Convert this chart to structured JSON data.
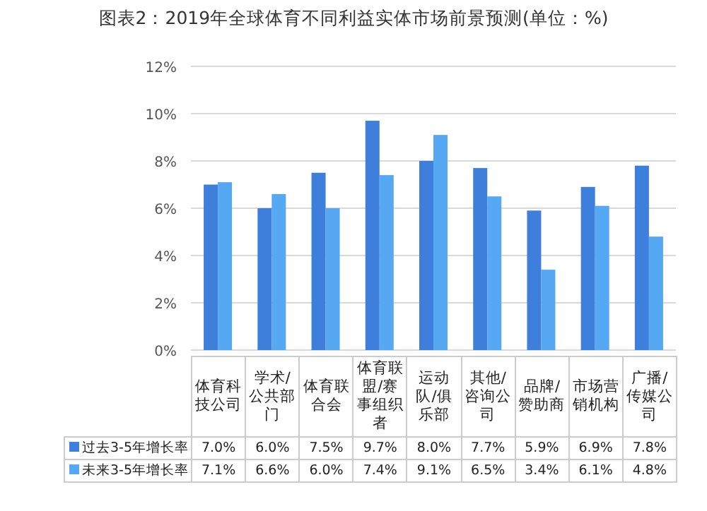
{
  "chart_data": {
    "type": "bar",
    "title": "图表2：2019年全球体育不同利益实体市场前景预测(单位：%)",
    "categories": [
      "体育科技公司",
      "学术/公共部门",
      "体育联合会",
      "体育联盟/赛事组织者",
      "运动队/俱乐部",
      "其他/咨询公司",
      "品牌/赞助商",
      "市场营销机构",
      "广播/传媒公司"
    ],
    "series": [
      {
        "name": "过去3-5年增长率",
        "color": "#3f7fdc",
        "values": [
          7.0,
          6.0,
          7.5,
          9.7,
          8.0,
          7.7,
          5.9,
          6.9,
          7.8
        ],
        "value_labels": [
          "7.0%",
          "6.0%",
          "7.5%",
          "9.7%",
          "8.0%",
          "7.7%",
          "5.9%",
          "6.9%",
          "7.8%"
        ]
      },
      {
        "name": "未来3-5年增长率",
        "color": "#56a8f2",
        "values": [
          7.1,
          6.6,
          6.0,
          7.4,
          9.1,
          6.5,
          3.4,
          6.1,
          4.8
        ],
        "value_labels": [
          "7.1%",
          "6.6%",
          "6.0%",
          "7.4%",
          "9.1%",
          "6.5%",
          "3.4%",
          "6.1%",
          "4.8%"
        ]
      }
    ],
    "ylim": [
      0,
      12
    ],
    "yticks": [
      {
        "value": 0,
        "label": "0%"
      },
      {
        "value": 2,
        "label": "2%"
      },
      {
        "value": 4,
        "label": "4%"
      },
      {
        "value": 6,
        "label": "6%"
      },
      {
        "value": 8,
        "label": "8%"
      },
      {
        "value": 10,
        "label": "10%"
      },
      {
        "value": 12,
        "label": "12%"
      }
    ],
    "grid": "y",
    "legend": "bottom"
  }
}
